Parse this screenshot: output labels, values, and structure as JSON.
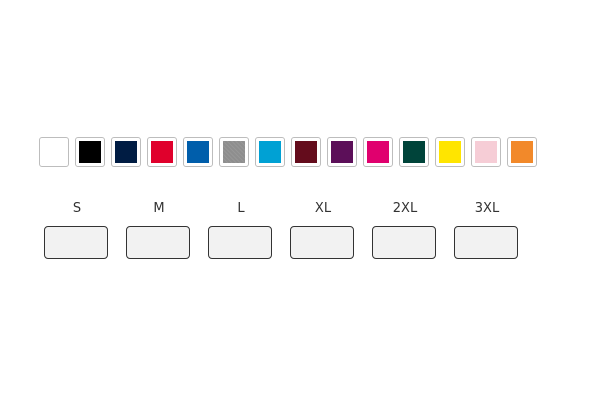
{
  "colors": [
    {
      "name": "white",
      "hex": "#ffffff"
    },
    {
      "name": "black",
      "hex": "#000000"
    },
    {
      "name": "navy",
      "hex": "#001c43"
    },
    {
      "name": "red",
      "hex": "#e0002c"
    },
    {
      "name": "royal-blue",
      "hex": "#005eab"
    },
    {
      "name": "heather-grey",
      "hex": "#8e8e8e"
    },
    {
      "name": "sky-blue",
      "hex": "#00a1d4"
    },
    {
      "name": "maroon",
      "hex": "#640c1c"
    },
    {
      "name": "purple",
      "hex": "#5c0f59"
    },
    {
      "name": "fuchsia",
      "hex": "#e0006e"
    },
    {
      "name": "forest-green",
      "hex": "#00443a"
    },
    {
      "name": "yellow",
      "hex": "#ffe500"
    },
    {
      "name": "light-pink",
      "hex": "#f6cdd6"
    },
    {
      "name": "orange",
      "hex": "#f2892a"
    }
  ],
  "sizes": [
    {
      "label": "S",
      "value": ""
    },
    {
      "label": "M",
      "value": ""
    },
    {
      "label": "L",
      "value": ""
    },
    {
      "label": "XL",
      "value": ""
    },
    {
      "label": "2XL",
      "value": ""
    },
    {
      "label": "3XL",
      "value": ""
    }
  ]
}
